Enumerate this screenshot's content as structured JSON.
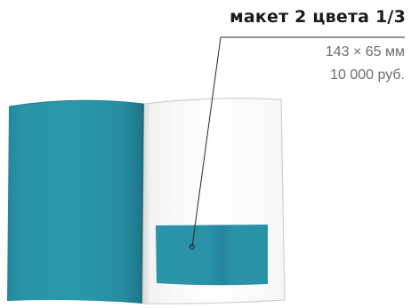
{
  "title": "макет 2 цвета 1/3",
  "dimensions": "143 × 65 мм",
  "price": "10 000 руб.",
  "colors": {
    "accent": "#2a93a8",
    "page": "#ffffff",
    "text_dark": "#1a1a1a",
    "text_muted": "#6d6d6d"
  }
}
